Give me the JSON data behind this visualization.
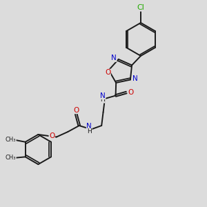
{
  "bg_color": "#dcdcdc",
  "bond_color": "#1a1a1a",
  "bond_width": 1.4,
  "atom_colors": {
    "N": "#0000cc",
    "O": "#cc0000",
    "Cl": "#22aa00",
    "H": "#1a1a1a"
  },
  "font_size": 7.5
}
